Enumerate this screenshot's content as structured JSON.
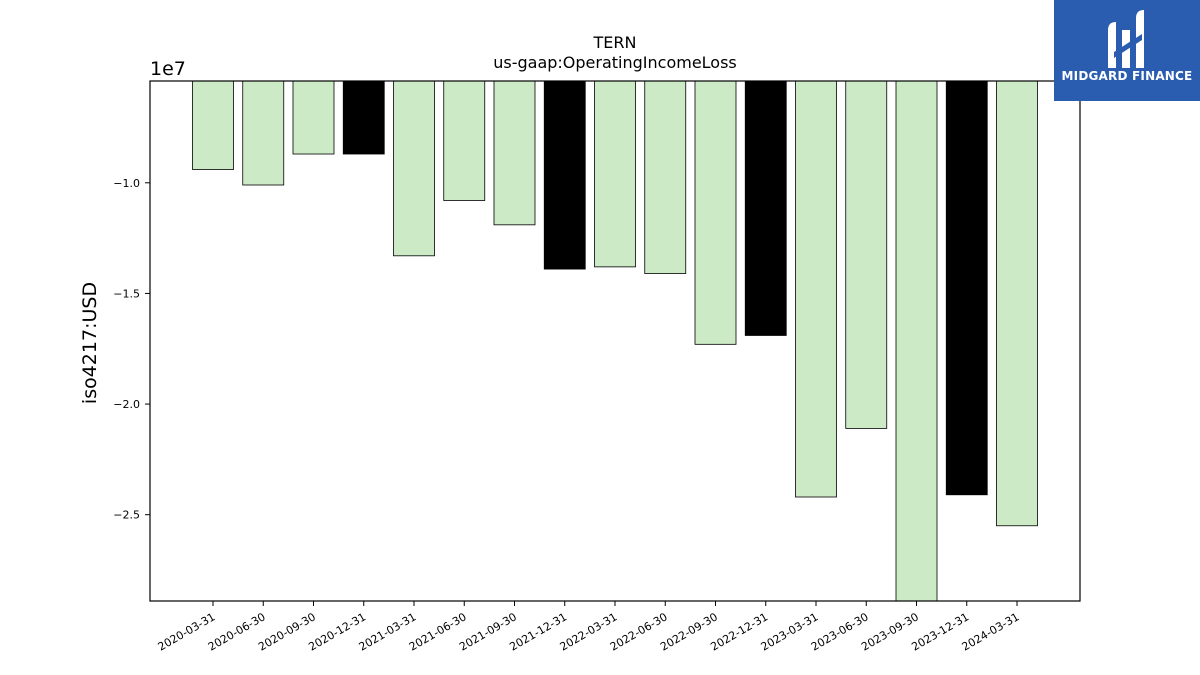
{
  "chart_data": {
    "type": "bar",
    "title": "TERN",
    "subtitle": "us-gaap:OperatingIncomeLoss",
    "ylabel": "iso4217:USD",
    "offset_label": "1e7",
    "categories": [
      "2020-03-31",
      "2020-06-30",
      "2020-09-30",
      "2020-12-31",
      "2021-03-31",
      "2021-06-30",
      "2021-09-30",
      "2021-12-31",
      "2022-03-31",
      "2022-06-30",
      "2022-09-30",
      "2022-12-31",
      "2023-03-31",
      "2023-06-30",
      "2023-09-30",
      "2023-12-31",
      "2024-03-31"
    ],
    "values": [
      -9400000,
      -10100000,
      -8700000,
      -8700000,
      -13300000,
      -10800000,
      -11900000,
      -13900000,
      -13800000,
      -14100000,
      -17300000,
      -16900000,
      -24200000,
      -21100000,
      -28900000,
      -24100000,
      -25500000
    ],
    "bar_colors": [
      "#cdeac6",
      "#cdeac6",
      "#cdeac6",
      "#000000",
      "#cdeac6",
      "#cdeac6",
      "#cdeac6",
      "#000000",
      "#cdeac6",
      "#cdeac6",
      "#cdeac6",
      "#000000",
      "#cdeac6",
      "#cdeac6",
      "#cdeac6",
      "#000000",
      "#cdeac6"
    ],
    "yticks": [
      -10000000,
      -15000000,
      -20000000,
      -25000000
    ],
    "ytick_labels": [
      "−1.0",
      "−1.5",
      "−2.0",
      "−2.5"
    ],
    "ylim": [
      -28900000,
      -5400000
    ],
    "grid": false,
    "legend": "none"
  },
  "logo": {
    "text": "MIDGARD FINANCE",
    "background": "#2a5db0",
    "foreground": "#ffffff"
  }
}
